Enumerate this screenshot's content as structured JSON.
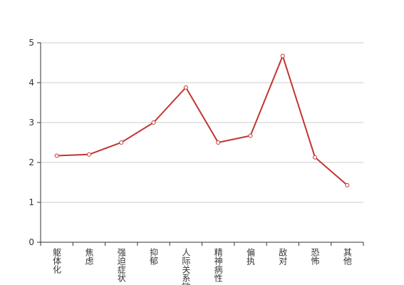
{
  "chart_data": {
    "type": "line",
    "categories": [
      "躯体化",
      "焦虑",
      "强迫症状",
      "抑郁",
      "人际关系敏感",
      "精神病性",
      "偏执",
      "敌对",
      "恐怖",
      "其他"
    ],
    "values": [
      2.17,
      2.2,
      2.5,
      3.0,
      3.88,
      2.5,
      2.67,
      4.67,
      2.13,
      1.43
    ],
    "color": "#c23531",
    "ylim": [
      0,
      5
    ],
    "yticks": [
      0,
      1,
      2,
      3,
      4,
      5
    ],
    "grid": true
  }
}
